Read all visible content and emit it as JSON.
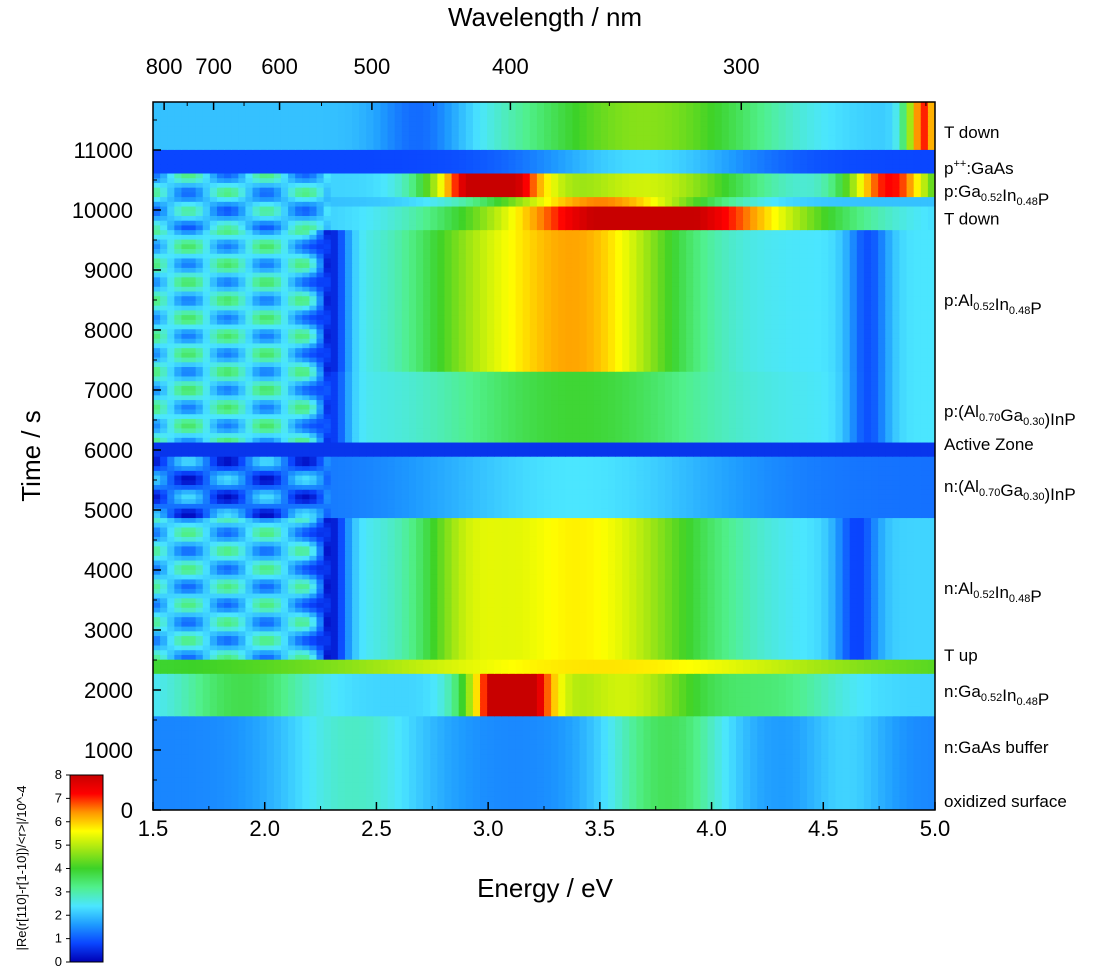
{
  "chart_data": {
    "type": "heatmap",
    "xlabel": "Energy / eV",
    "ylabel": "Time / s",
    "x2label": "Wavelength / nm",
    "xlim": [
      1.5,
      5.0
    ],
    "ylim": [
      0,
      11800
    ],
    "x_ticks": [
      "1.5",
      "2.0",
      "2.5",
      "3.0",
      "3.5",
      "4.0",
      "4.5",
      "5.0"
    ],
    "x_tick_values": [
      1.5,
      2.0,
      2.5,
      3.0,
      3.5,
      4.0,
      4.5,
      5.0
    ],
    "y_ticks": [
      "0",
      "1000",
      "2000",
      "3000",
      "4000",
      "5000",
      "6000",
      "7000",
      "8000",
      "9000",
      "10000",
      "11000"
    ],
    "y_tick_values": [
      0,
      1000,
      2000,
      3000,
      4000,
      5000,
      6000,
      7000,
      8000,
      9000,
      10000,
      11000
    ],
    "wavelength_ticks": [
      "800",
      "700",
      "600",
      "500",
      "400",
      "300"
    ],
    "wavelength_tick_values": [
      800,
      700,
      600,
      500,
      400,
      300
    ],
    "colorbar": {
      "label": "|Re(r[110]-r[1-10])/<r>|/10^-4",
      "ticks": [
        "0",
        "1",
        "2",
        "3",
        "4",
        "5",
        "6",
        "7",
        "8"
      ],
      "tick_values": [
        0,
        1,
        2,
        3,
        4,
        5,
        6,
        7,
        8
      ],
      "range": [
        0,
        8
      ],
      "colors": [
        "#0000b4",
        "#0a46ff",
        "#1e9bff",
        "#4be6ff",
        "#50f08c",
        "#3cd228",
        "#a0e614",
        "#ffff00",
        "#ff9600",
        "#ff0000",
        "#c80000"
      ]
    },
    "layers": [
      {
        "label": "oxidized surface",
        "time": 150
      },
      {
        "label": "n:GaAs buffer",
        "time": 1050
      },
      {
        "label": "n:Ga0.52In0.48P",
        "time": 1980
      },
      {
        "label": "T up",
        "time": 2580
      },
      {
        "label": "n:Al0.52In0.48P",
        "time": 3700
      },
      {
        "label": "n:(Al0.70Ga0.30)InP",
        "time": 5400
      },
      {
        "label": "Active Zone",
        "time": 6100
      },
      {
        "label": "p:(Al0.70Ga0.30)InP",
        "time": 6650
      },
      {
        "label": "p:Al0.52In0.48P",
        "time": 8500
      },
      {
        "label": "T down",
        "time": 9860
      },
      {
        "label": "p:Ga0.52In0.48P",
        "time": 10320
      },
      {
        "label": "p++:GaAs",
        "time": 10700
      },
      {
        "label": "T down",
        "time": 11300
      }
    ],
    "regions": [
      {
        "t": [
          0,
          1550
        ],
        "base": 1.4,
        "features": [
          {
            "e": 3.8,
            "w": 0.3,
            "a": 2.2
          },
          {
            "e": 2.4,
            "w": 0.35,
            "a": 1.4
          },
          {
            "e": 4.6,
            "w": 0.2,
            "a": 0.8
          }
        ]
      },
      {
        "t": [
          1550,
          2300
        ],
        "base": 2.2,
        "features": [
          {
            "e": 3.1,
            "w": 0.18,
            "a": 7.0
          },
          {
            "e": 3.6,
            "w": 0.4,
            "a": 3.0
          },
          {
            "e": 1.9,
            "w": 0.3,
            "a": 1.5
          },
          {
            "e": 4.3,
            "w": 0.3,
            "a": 1.0
          }
        ]
      },
      {
        "t": [
          2300,
          2480
        ],
        "base": 3.8,
        "features": [
          {
            "e": 3.5,
            "w": 1.2,
            "a": 2.0
          }
        ]
      },
      {
        "t": [
          2480,
          4900
        ],
        "base": 2.2,
        "features": [
          {
            "e": 3.4,
            "w": 0.6,
            "a": 3.5
          },
          {
            "e": 2.9,
            "w": 0.2,
            "a": 1.2
          },
          {
            "e": 2.3,
            "w": 0.08,
            "a": -2.0
          },
          {
            "e": 4.65,
            "w": 0.1,
            "a": -1.5
          }
        ]
      },
      {
        "t": [
          4900,
          5900
        ],
        "base": 1.2,
        "features": [
          {
            "e": 3.4,
            "w": 0.7,
            "a": 1.2
          }
        ]
      },
      {
        "t": [
          5900,
          6150
        ],
        "base": 0.6,
        "features": []
      },
      {
        "t": [
          6150,
          7300
        ],
        "base": 2.4,
        "features": [
          {
            "e": 3.4,
            "w": 0.6,
            "a": 1.5
          },
          {
            "e": 2.3,
            "w": 0.08,
            "a": -1.8
          },
          {
            "e": 4.7,
            "w": 0.1,
            "a": -1.5
          }
        ]
      },
      {
        "t": [
          7300,
          9700
        ],
        "base": 2.4,
        "features": [
          {
            "e": 3.4,
            "w": 0.45,
            "a": 3.8
          },
          {
            "e": 2.9,
            "w": 0.3,
            "a": 1.2
          },
          {
            "e": 2.3,
            "w": 0.08,
            "a": -2.0
          },
          {
            "e": 4.7,
            "w": 0.1,
            "a": -1.5
          }
        ]
      },
      {
        "t": [
          9700,
          10050
        ],
        "base": 2.0,
        "features": [
          {
            "e": 3.7,
            "w": 0.75,
            "a": 6.6
          }
        ]
      },
      {
        "t": [
          10050,
          10250
        ],
        "base": 2.0,
        "features": [
          {
            "e": 3.5,
            "w": 0.5,
            "a": 4.5
          }
        ]
      },
      {
        "t": [
          10250,
          10600
        ],
        "base": 2.2,
        "features": [
          {
            "e": 3.0,
            "w": 0.25,
            "a": 6.5
          },
          {
            "e": 4.8,
            "w": 0.2,
            "a": 5.0
          },
          {
            "e": 3.7,
            "w": 0.5,
            "a": 3.0
          }
        ]
      },
      {
        "t": [
          10600,
          11000
        ],
        "base": 0.8,
        "features": [
          {
            "e": 3.7,
            "w": 0.5,
            "a": 1.5
          }
        ]
      },
      {
        "t": [
          11000,
          11800
        ],
        "base": 2.0,
        "features": [
          {
            "e": 3.7,
            "w": 0.6,
            "a": 2.6
          },
          {
            "e": 2.7,
            "w": 0.2,
            "a": -1.0
          },
          {
            "e": 4.95,
            "w": 0.08,
            "a": 5.0
          }
        ]
      }
    ]
  }
}
